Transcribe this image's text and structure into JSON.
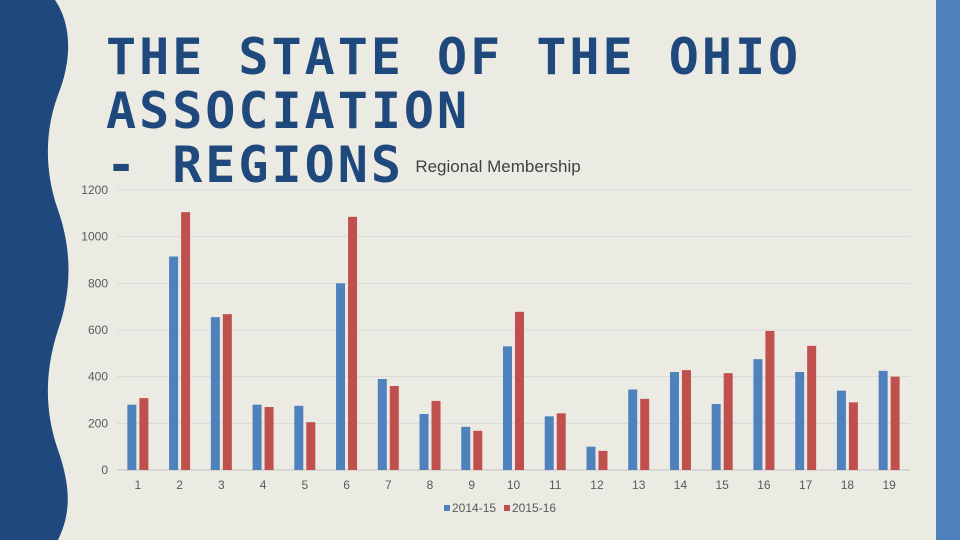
{
  "slide": {
    "title_lines": [
      "THE STATE OF THE OHIO",
      "ASSOCIATION",
      "- REGIONS"
    ],
    "colors": {
      "background": "#ecebe3",
      "title": "#1f497d",
      "band": "#1f497d",
      "accent_bar": "#4f81bd"
    }
  },
  "chart_data": {
    "type": "bar",
    "title": "Regional Membership",
    "categories": [
      "1",
      "2",
      "3",
      "4",
      "5",
      "6",
      "7",
      "8",
      "9",
      "10",
      "11",
      "12",
      "13",
      "14",
      "15",
      "16",
      "17",
      "18",
      "19"
    ],
    "series": [
      {
        "name": "2014-15",
        "color": "#4f81bd",
        "values": [
          280,
          915,
          655,
          280,
          275,
          800,
          390,
          240,
          185,
          530,
          230,
          100,
          345,
          420,
          283,
          475,
          420,
          340,
          425
        ]
      },
      {
        "name": "2015-16",
        "color": "#c0504d",
        "values": [
          308,
          1105,
          668,
          270,
          205,
          1085,
          360,
          296,
          168,
          678,
          243,
          82,
          305,
          428,
          415,
          596,
          532,
          290,
          400
        ]
      }
    ],
    "y_ticks": [
      0,
      200,
      400,
      600,
      800,
      1000,
      1200
    ],
    "ylim": [
      0,
      1200
    ],
    "grid": true,
    "legend": "bottom",
    "xlabel": "",
    "ylabel": ""
  }
}
